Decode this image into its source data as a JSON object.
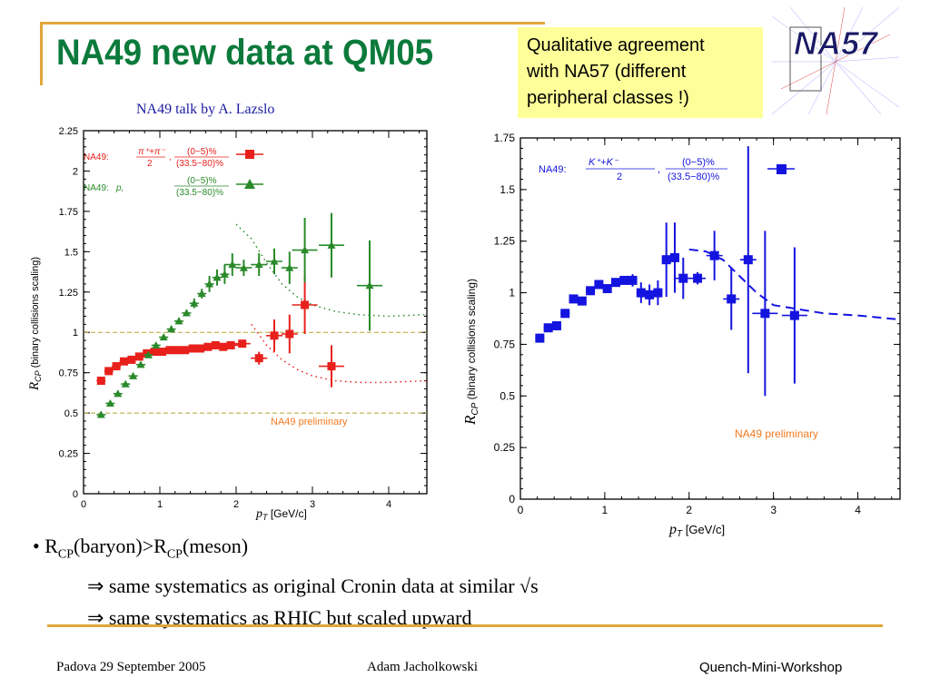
{
  "slide": {
    "title": "NA49 new data at QM05",
    "note_lines": [
      "Qualitative agreement",
      "with NA57 (different",
      "peripheral classes !)"
    ],
    "logo_text": "NA57",
    "credit": "NA49 talk by A. Lazslo",
    "bullet_main": "• R_CP(baryon)>R_CP(meson)",
    "bullet_sub1": "⇒ same systematics as original Cronin data at similar √s",
    "bullet_sub2": "⇒ same systematics as RHIC but scaled upward",
    "footer_left": "Padova 29 September 2005",
    "footer_mid": "Adam Jacholkowski",
    "footer_right": "Quench-Mini-Workshop",
    "accent_color": "#e0a63a",
    "title_color": "#0b7a3b"
  },
  "chart_data": [
    {
      "type": "scatter",
      "xlabel": "pT [GeV/c]",
      "ylabel": "RCP (binary collisions scaling)",
      "xlim": [
        0,
        4.5
      ],
      "ylim": [
        0,
        2.25
      ],
      "xticks": [
        "0",
        "1",
        "2",
        "3",
        "4"
      ],
      "yticks": [
        "0",
        "0.25",
        "0.5",
        "0.75",
        "1",
        "1.25",
        "1.5",
        "1.75",
        "2",
        "2.25"
      ],
      "annotation": "NA49 preliminary",
      "reference_lines": [
        0.5,
        1.0
      ],
      "series": [
        {
          "name": "NA49: (π⁺+π⁻)/2, (0-5)%/(33.5-80)%",
          "color": "#e8201c",
          "marker": "square",
          "x": [
            0.23,
            0.33,
            0.43,
            0.53,
            0.63,
            0.73,
            0.83,
            0.93,
            1.03,
            1.13,
            1.23,
            1.33,
            1.43,
            1.53,
            1.63,
            1.73,
            1.83,
            1.93,
            2.08,
            2.3,
            2.5,
            2.7,
            2.9,
            3.25
          ],
          "y": [
            0.7,
            0.76,
            0.79,
            0.82,
            0.83,
            0.85,
            0.87,
            0.88,
            0.88,
            0.89,
            0.89,
            0.89,
            0.9,
            0.9,
            0.91,
            0.92,
            0.91,
            0.92,
            0.93,
            0.84,
            0.98,
            0.99,
            1.17,
            0.79
          ],
          "yerr": [
            0.01,
            0.01,
            0.01,
            0.01,
            0.01,
            0.01,
            0.01,
            0.01,
            0.01,
            0.01,
            0.01,
            0.01,
            0.01,
            0.01,
            0.01,
            0.01,
            0.01,
            0.01,
            0.02,
            0.04,
            0.1,
            0.12,
            0.18,
            0.13
          ]
        },
        {
          "name": "NA49: p, (0-5)%/(33.5-80)%",
          "color": "#2a8a2a",
          "marker": "triangle",
          "x": [
            0.23,
            0.35,
            0.45,
            0.55,
            0.65,
            0.75,
            0.85,
            0.95,
            1.05,
            1.15,
            1.25,
            1.35,
            1.45,
            1.55,
            1.65,
            1.75,
            1.85,
            1.95,
            2.1,
            2.3,
            2.5,
            2.7,
            2.9,
            3.25,
            3.75
          ],
          "y": [
            0.49,
            0.56,
            0.62,
            0.68,
            0.73,
            0.8,
            0.86,
            0.92,
            0.97,
            1.02,
            1.07,
            1.12,
            1.18,
            1.24,
            1.3,
            1.34,
            1.36,
            1.42,
            1.4,
            1.42,
            1.44,
            1.4,
            1.51,
            1.54,
            1.29
          ],
          "yerr": [
            0.01,
            0.01,
            0.01,
            0.01,
            0.01,
            0.01,
            0.01,
            0.01,
            0.01,
            0.02,
            0.02,
            0.02,
            0.03,
            0.03,
            0.05,
            0.05,
            0.06,
            0.07,
            0.05,
            0.07,
            0.08,
            0.1,
            0.2,
            0.2,
            0.28
          ]
        }
      ],
      "curves": [
        {
          "color": "#2a8a2a",
          "x": [
            2.0,
            2.2,
            2.4,
            2.6,
            2.8,
            3.0,
            3.3,
            3.6,
            4.0,
            4.5
          ],
          "y": [
            1.67,
            1.58,
            1.43,
            1.3,
            1.22,
            1.17,
            1.13,
            1.11,
            1.1,
            1.11
          ]
        },
        {
          "color": "#e8201c",
          "x": [
            2.2,
            2.4,
            2.6,
            2.8,
            3.0,
            3.3,
            3.6,
            4.0,
            4.5
          ],
          "y": [
            1.05,
            0.92,
            0.83,
            0.77,
            0.73,
            0.7,
            0.69,
            0.69,
            0.7
          ]
        }
      ]
    },
    {
      "type": "scatter",
      "xlabel": "pT [GeV/c]",
      "ylabel": "RCP (binary collisions scaling)",
      "xlim": [
        0,
        4.5
      ],
      "ylim": [
        0,
        1.75
      ],
      "xticks": [
        "0",
        "1",
        "2",
        "3",
        "4"
      ],
      "yticks": [
        "0",
        "0.25",
        "0.5",
        "0.75",
        "1",
        "1.25",
        "1.5",
        "1.75"
      ],
      "annotation": "NA49 preliminary",
      "series": [
        {
          "name": "NA49: (K⁺+K⁻)/2, (0-5)%/(33.5-80)%",
          "color": "#1414e0",
          "marker": "square",
          "x": [
            0.23,
            0.33,
            0.43,
            0.53,
            0.63,
            0.73,
            0.83,
            0.93,
            1.03,
            1.13,
            1.23,
            1.33,
            1.43,
            1.53,
            1.63,
            1.73,
            1.83,
            1.93,
            2.1,
            2.3,
            2.5,
            2.7,
            2.9,
            3.25
          ],
          "y": [
            0.78,
            0.83,
            0.84,
            0.9,
            0.97,
            0.96,
            1.01,
            1.04,
            1.02,
            1.05,
            1.06,
            1.06,
            1.0,
            0.99,
            1.0,
            1.16,
            1.17,
            1.07,
            1.07,
            1.18,
            0.97,
            1.16,
            0.9,
            0.89
          ],
          "yerr": [
            0.01,
            0.01,
            0.01,
            0.01,
            0.01,
            0.01,
            0.01,
            0.01,
            0.01,
            0.02,
            0.02,
            0.03,
            0.05,
            0.05,
            0.06,
            0.18,
            0.17,
            0.1,
            0.03,
            0.12,
            0.15,
            0.55,
            0.4,
            0.33
          ]
        }
      ],
      "curves": [
        {
          "color": "#1414e0",
          "x": [
            2.0,
            2.2,
            2.4,
            2.6,
            2.8,
            3.0,
            3.3,
            3.6,
            4.0,
            4.5
          ],
          "y": [
            1.21,
            1.2,
            1.16,
            1.08,
            1.0,
            0.94,
            0.92,
            0.9,
            0.89,
            0.87
          ]
        }
      ]
    }
  ]
}
